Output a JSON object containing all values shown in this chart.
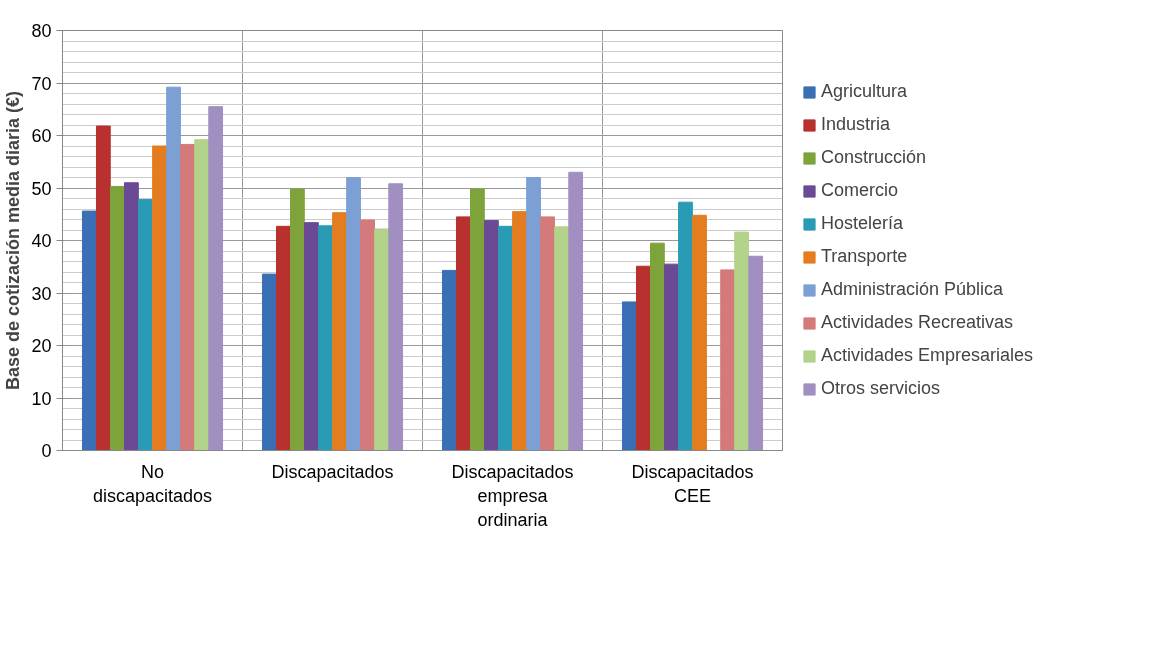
{
  "chart_data": {
    "type": "bar",
    "ylabel": "Base de cotización media diaria (€)",
    "categories": [
      "No\ndiscapacitados",
      "Discapacitados",
      "Discapacitados\nempresa\nordinaria",
      "Discapacitados\nCEE"
    ],
    "series": [
      {
        "name": "Agricultura",
        "color": "#3a6fb5",
        "values": [
          45.6,
          33.6,
          34.3,
          28.3
        ]
      },
      {
        "name": "Industria",
        "color": "#b8312f",
        "values": [
          61.8,
          42.7,
          44.5,
          35.1
        ]
      },
      {
        "name": "Construcción",
        "color": "#7ea33a",
        "values": [
          50.3,
          49.8,
          49.8,
          39.5
        ]
      },
      {
        "name": "Comercio",
        "color": "#6a4a94",
        "values": [
          51.0,
          43.4,
          43.8,
          35.5
        ]
      },
      {
        "name": "Hostelería",
        "color": "#2a9bb5",
        "values": [
          47.8,
          42.8,
          42.7,
          47.3
        ]
      },
      {
        "name": "Transporte",
        "color": "#e47d20",
        "values": [
          58.0,
          45.3,
          45.5,
          44.8
        ]
      },
      {
        "name": "Administración Pública",
        "color": "#7c9fd4",
        "values": [
          69.2,
          52.0,
          52.0,
          null
        ]
      },
      {
        "name": "Actividades Recreativas",
        "color": "#d57a7a",
        "values": [
          58.3,
          43.9,
          44.5,
          34.4
        ]
      },
      {
        "name": "Actividades Empresariales",
        "color": "#b3d28a",
        "values": [
          59.2,
          42.2,
          42.6,
          41.6
        ]
      },
      {
        "name": "Otros servicios",
        "color": "#a08fc0",
        "values": [
          65.5,
          50.8,
          53.0,
          37.0
        ]
      }
    ],
    "ylim": [
      0,
      80
    ],
    "yticks": [
      0,
      10,
      20,
      30,
      40,
      50,
      60,
      70,
      80
    ],
    "grid": true,
    "legend": "right"
  }
}
